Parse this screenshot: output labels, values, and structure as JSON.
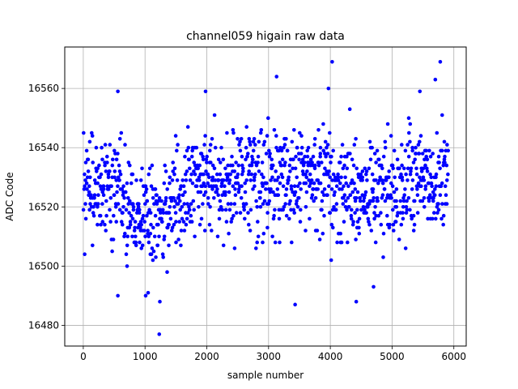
{
  "chart_data": {
    "type": "scatter",
    "title": "channel059 higain raw data",
    "xlabel": "sample number",
    "ylabel": "ADC Code",
    "xlim": [
      -300,
      6200
    ],
    "ylim": [
      16473,
      16574
    ],
    "xticks": [
      0,
      1000,
      2000,
      3000,
      4000,
      5000,
      6000
    ],
    "yticks": [
      16480,
      16500,
      16520,
      16540,
      16560
    ],
    "grid": true,
    "marker_color": "#0000ff",
    "series": [
      {
        "x_start": 0,
        "x_end": 5900,
        "n_points": 5900,
        "sample_step": 10,
        "quantization_step": 2,
        "trend_x": [
          0,
          500,
          900,
          1200,
          1500,
          2000,
          2500,
          3000,
          3500,
          4000,
          4500,
          5000,
          5500,
          5900
        ],
        "trend_y": [
          16526,
          16526,
          16519,
          16515,
          16521,
          16528,
          16527,
          16529,
          16528,
          16527,
          16524,
          16526,
          16530,
          16528
        ],
        "spread_sd": 8.5,
        "y_min_observed": 16477,
        "y_max_observed": 16569,
        "outliers": [
          {
            "x": 1230,
            "y": 16477
          },
          {
            "x": 4030,
            "y": 16569
          },
          {
            "x": 5780,
            "y": 16569
          },
          {
            "x": 3130,
            "y": 16564
          },
          {
            "x": 5700,
            "y": 16563
          },
          {
            "x": 1980,
            "y": 16559
          },
          {
            "x": 3970,
            "y": 16560
          },
          {
            "x": 5450,
            "y": 16559
          },
          {
            "x": 560,
            "y": 16559
          },
          {
            "x": 3430,
            "y": 16487
          },
          {
            "x": 4420,
            "y": 16488
          },
          {
            "x": 1240,
            "y": 16488
          },
          {
            "x": 1010,
            "y": 16490
          },
          {
            "x": 1050,
            "y": 16491
          },
          {
            "x": 560,
            "y": 16490
          },
          {
            "x": 4700,
            "y": 16493
          }
        ]
      }
    ]
  }
}
